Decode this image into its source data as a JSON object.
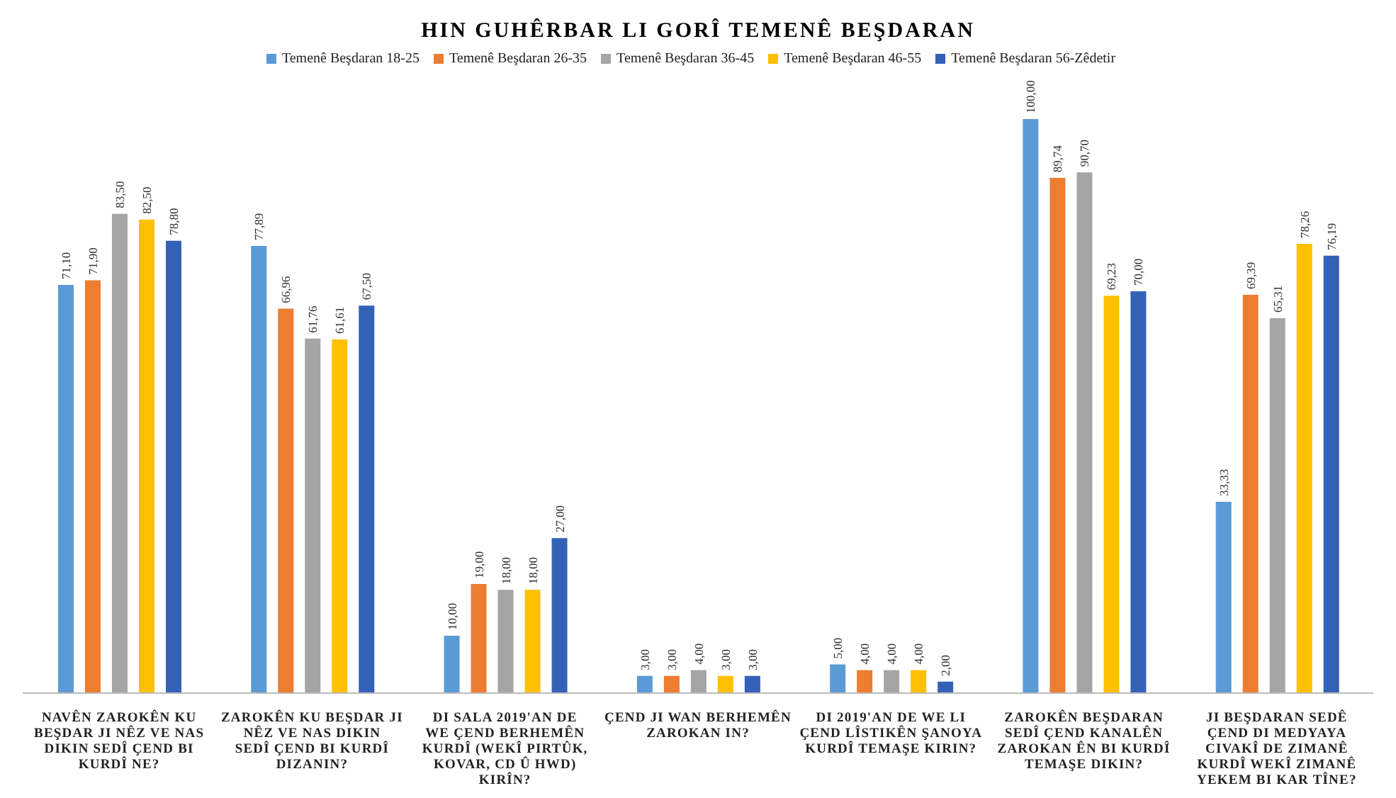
{
  "chart_data": {
    "type": "bar",
    "title": "HIN GUHÊRBAR LI GORÎ TEMENÊ BEŞDARAN",
    "categories": [
      "NAVÊN ZAROKÊN KU BEŞDAR JI NÊZ VE NAS DIKIN SEDÎ ÇEND BI KURDÎ NE?",
      "ZAROKÊN KU BEŞDAR JI NÊZ VE NAS DIKIN SEDÎ ÇEND BI KURDÎ DIZANIN?",
      "DI SALA 2019'AN DE WE ÇEND BERHEMÊN KURDÎ (WEKÎ PIRTÛK, KOVAR, CD Û HWD) KIRÎN?",
      "ÇEND JI WAN BERHEMÊN ZAROKAN IN?",
      "DI 2019'AN DE WE LI ÇEND LÎSTIKÊN ŞANOYA KURDÎ TEMAŞE KIRIN?",
      "ZAROKÊN BEŞDARAN SEDÎ ÇEND KANALÊN ZAROKAN ÊN BI KURDÎ TEMAŞE DIKIN?",
      "JI BEŞDARAN SEDÊ ÇEND DI MEDYAYA CIVAKÎ DE ZIMANÊ KURDÎ WEKÎ ZIMANÊ YEKEM BI KAR TÎNE?"
    ],
    "series": [
      {
        "name": "Temenê Beşdaran 18-25",
        "color": "#5b9bd5",
        "values": [
          71.1,
          77.89,
          10,
          3,
          5,
          100,
          33.33
        ],
        "value_labels": [
          "71,10",
          "77,89",
          "10,00",
          "3,00",
          "5,00",
          "100,00",
          "33,33"
        ]
      },
      {
        "name": "Temenê Beşdaran 26-35",
        "color": "#ed7d31",
        "values": [
          71.9,
          66.96,
          19,
          3,
          4,
          89.74,
          69.39
        ],
        "value_labels": [
          "71,90",
          "66,96",
          "19,00",
          "3,00",
          "4,00",
          "89,74",
          "69,39"
        ]
      },
      {
        "name": "Temenê Beşdaran 36-45",
        "color": "#a5a5a5",
        "values": [
          83.5,
          61.76,
          18,
          4,
          4,
          90.7,
          65.31
        ],
        "value_labels": [
          "83,50",
          "61,76",
          "18,00",
          "4,00",
          "4,00",
          "90,70",
          "65,31"
        ]
      },
      {
        "name": "Temenê Beşdaran 46-55",
        "color": "#ffc000",
        "values": [
          82.5,
          61.61,
          18,
          3,
          4,
          69.23,
          78.26
        ],
        "value_labels": [
          "82,50",
          "61,61",
          "18,00",
          "3,00",
          "4,00",
          "69,23",
          "78,26"
        ]
      },
      {
        "name": "Temenê Beşdaran 56-Zêdetir",
        "color": "#3461b8",
        "values": [
          78.8,
          67.5,
          27,
          3,
          2,
          70.0,
          76.19
        ],
        "value_labels": [
          "78,80",
          "67,50",
          "27,00",
          "3,00",
          "2,00",
          "70,00",
          "76,19"
        ]
      }
    ],
    "ylim": [
      0,
      100
    ],
    "tick_labels": "x",
    "legend": "top",
    "grid": false
  }
}
